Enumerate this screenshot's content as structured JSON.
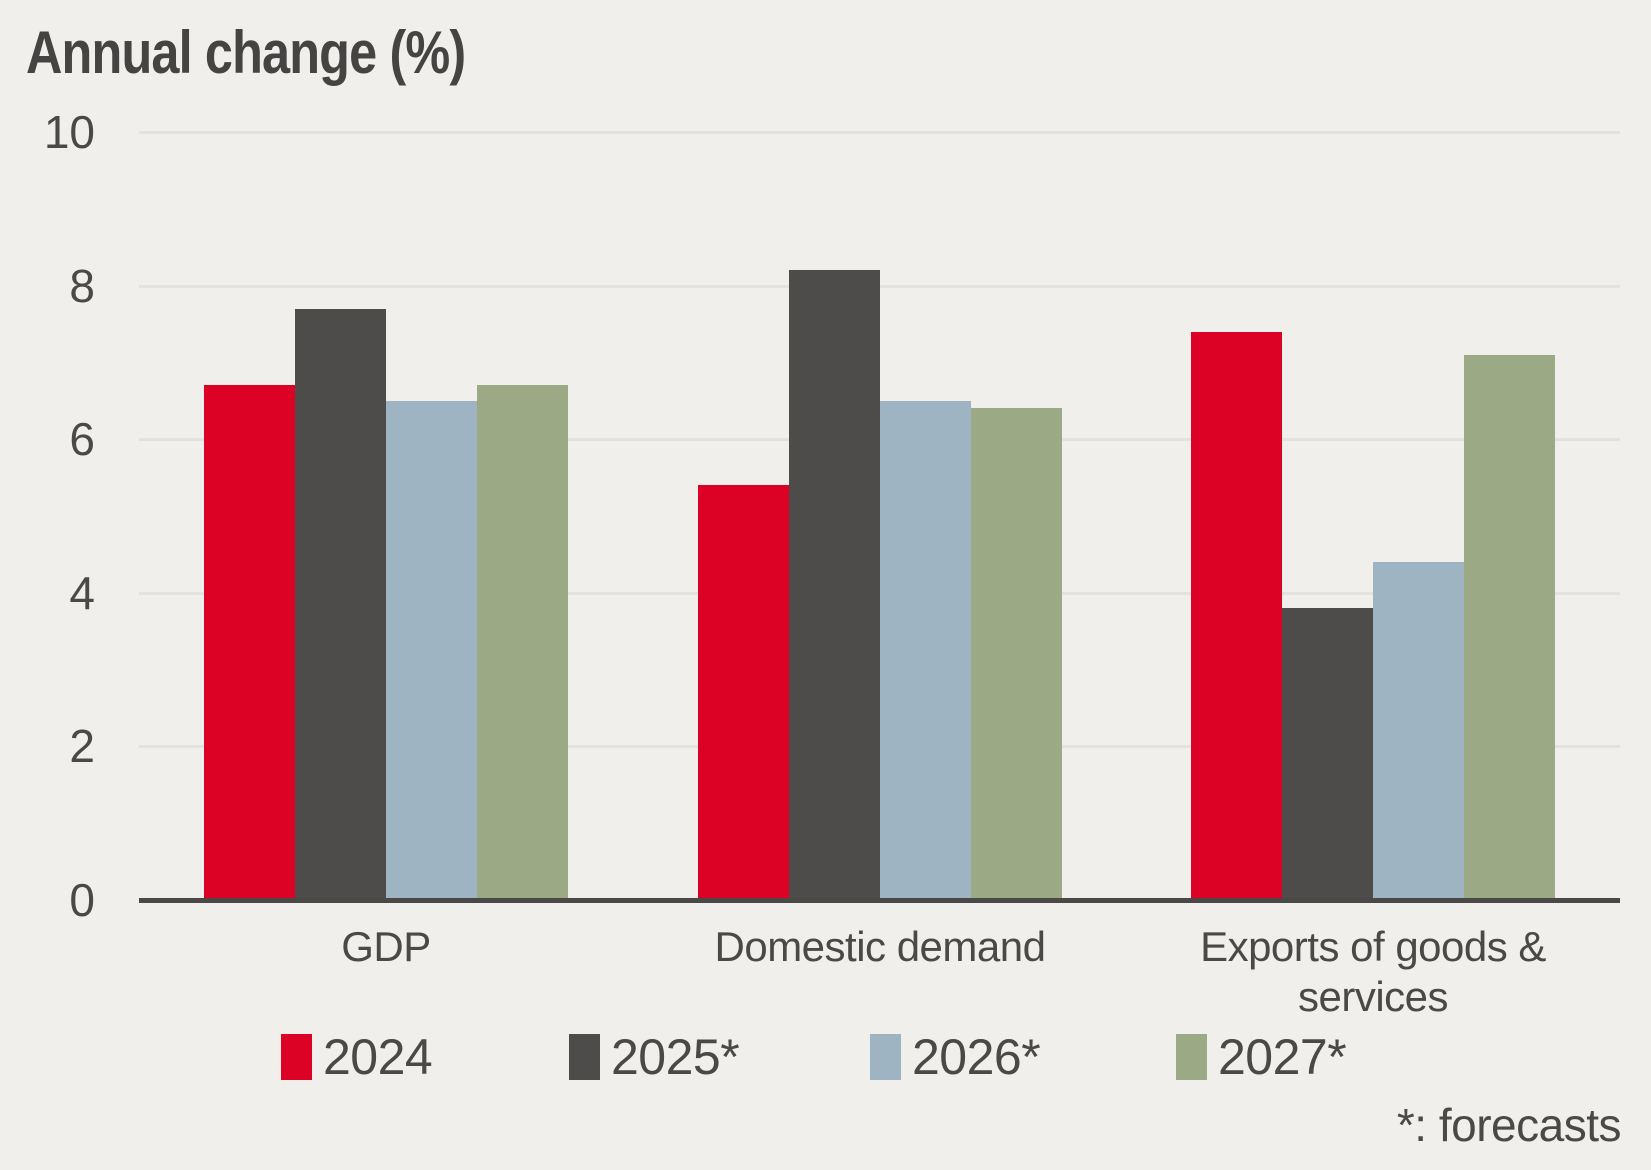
{
  "title": "Annual change (%)",
  "footnote": "*: forecasts",
  "colors": {
    "background": "#f0efec",
    "gridline": "#e3e2df",
    "axis": "#4a4947",
    "text": "#4a4947",
    "series_2024": "#dc0226",
    "series_2025": "#4d4c4a",
    "series_2026": "#9eb4c3",
    "series_2027": "#9ba985"
  },
  "chart_data": {
    "type": "bar",
    "title": "Annual change (%)",
    "categories": [
      "GDP",
      "Domestic demand",
      "Exports of goods & services"
    ],
    "series": [
      {
        "name": "2024",
        "color": "#dc0226",
        "values": [
          6.7,
          5.4,
          7.4
        ]
      },
      {
        "name": "2025*",
        "color": "#4d4c4a",
        "values": [
          7.7,
          8.2,
          3.8
        ]
      },
      {
        "name": "2026*",
        "color": "#9eb4c3",
        "values": [
          6.5,
          6.5,
          4.4
        ]
      },
      {
        "name": "2027*",
        "color": "#9ba985",
        "values": [
          6.7,
          6.4,
          7.1
        ]
      }
    ],
    "xlabel": "",
    "ylabel": "Annual change (%)",
    "ylim": [
      0,
      10
    ],
    "yticks": [
      0,
      2,
      4,
      6,
      8,
      10
    ],
    "grid": true,
    "legend_position": "bottom",
    "footnote": "*: forecasts"
  }
}
